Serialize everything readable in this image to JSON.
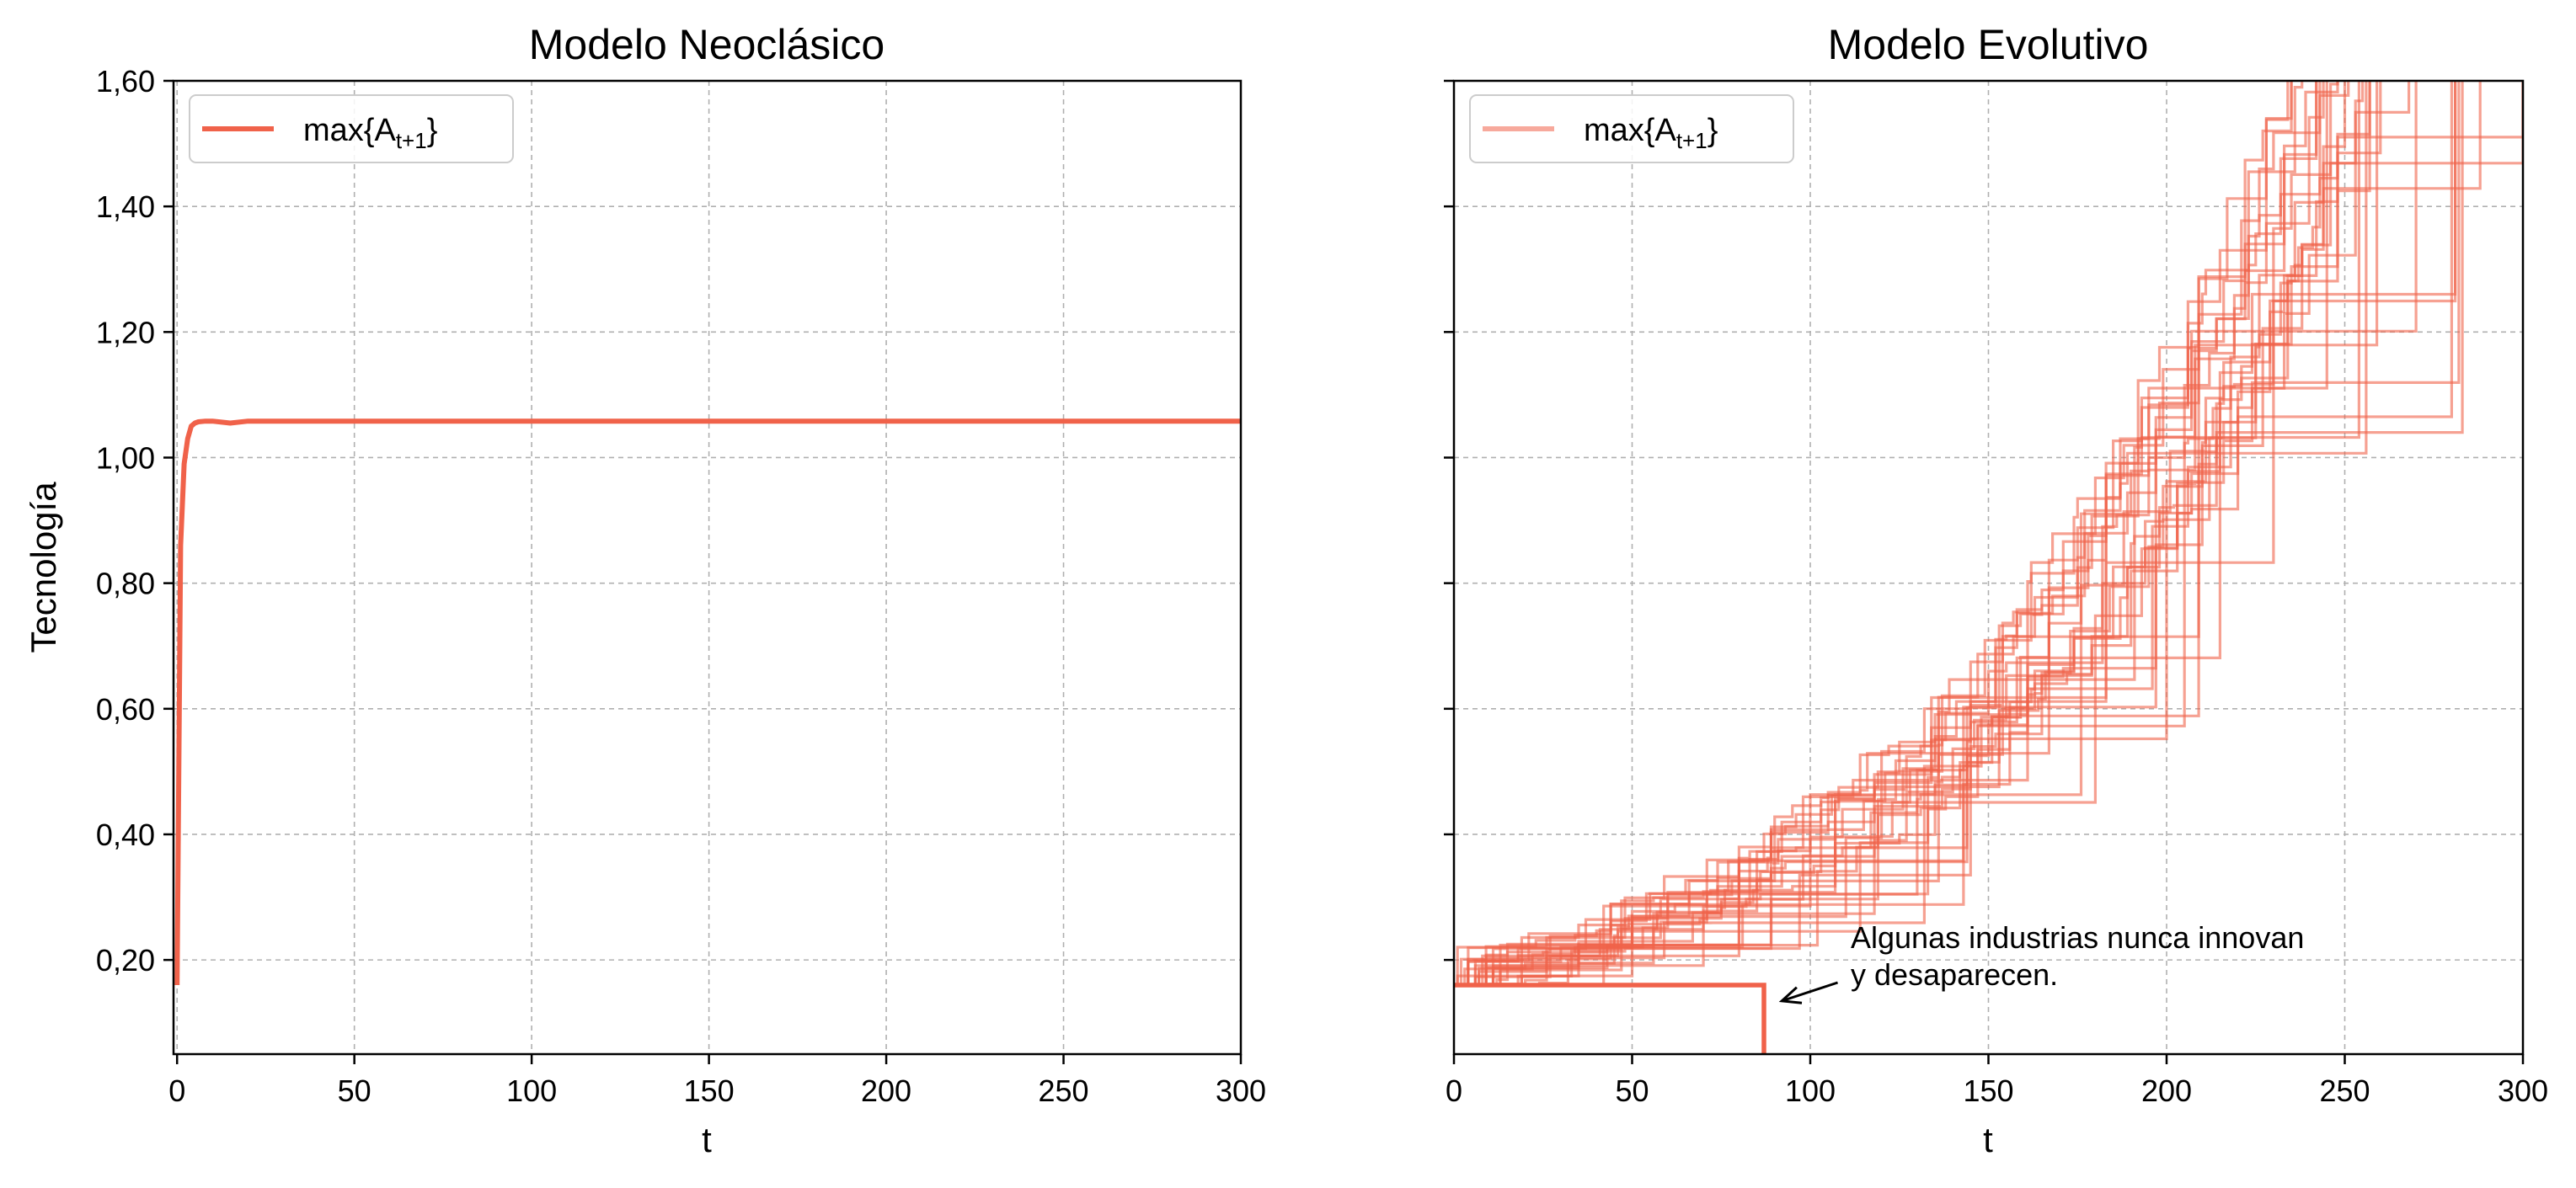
{
  "chart_data": [
    {
      "type": "line",
      "title": "Modelo Neoclásico",
      "xlabel": "t",
      "ylabel": "Tecnología",
      "xlim": [
        -1,
        300
      ],
      "ylim": [
        0.05,
        1.6
      ],
      "xticks": [
        0,
        50,
        100,
        150,
        200,
        250,
        300
      ],
      "yticks": [
        0.2,
        0.4,
        0.6,
        0.8,
        1.0,
        1.2,
        1.4,
        1.6
      ],
      "ytick_labels": [
        "0,20",
        "0,40",
        "0,60",
        "0,80",
        "1,00",
        "1,20",
        "1,40",
        "1,60"
      ],
      "grid": true,
      "legend": {
        "position": "top-left",
        "label_main": "max{A",
        "label_sub": "t+1",
        "label_close": "}"
      },
      "series": [
        {
          "color": "#f0624a",
          "x": [
            0,
            1,
            2,
            3,
            4,
            5,
            6,
            8,
            10,
            15,
            20,
            50,
            100,
            150,
            200,
            250,
            300
          ],
          "y": [
            0.16,
            0.86,
            0.99,
            1.03,
            1.05,
            1.055,
            1.057,
            1.058,
            1.058,
            1.055,
            1.058,
            1.058,
            1.058,
            1.058,
            1.058,
            1.058,
            1.058
          ]
        }
      ]
    },
    {
      "type": "line",
      "title": "Modelo Evolutivo",
      "xlabel": "t",
      "xlim": [
        0,
        300
      ],
      "ylim": [
        0.05,
        1.6
      ],
      "xticks": [
        0,
        50,
        100,
        150,
        200,
        250,
        300
      ],
      "grid": true,
      "legend": {
        "position": "top-left",
        "label_main": "max{A",
        "label_sub": "t+1",
        "label_close": "}"
      },
      "color": "#f0624a",
      "series_count": 30,
      "typical_path": {
        "t": [
          0,
          25,
          50,
          75,
          100,
          125,
          150,
          175,
          200,
          225,
          245
        ],
        "y": [
          0.16,
          0.19,
          0.24,
          0.3,
          0.38,
          0.48,
          0.62,
          0.8,
          1.02,
          1.3,
          1.6
        ]
      },
      "extinct_series": {
        "x": [
          0,
          87,
          87
        ],
        "y": [
          0.16,
          0.16,
          0.05
        ]
      },
      "annotation": {
        "lines": [
          "Algunas industrias nunca innovan",
          "y desaparecen."
        ],
        "text_at": [
          111,
          0.2
        ],
        "arrow_to": [
          92,
          0.14
        ]
      }
    }
  ]
}
